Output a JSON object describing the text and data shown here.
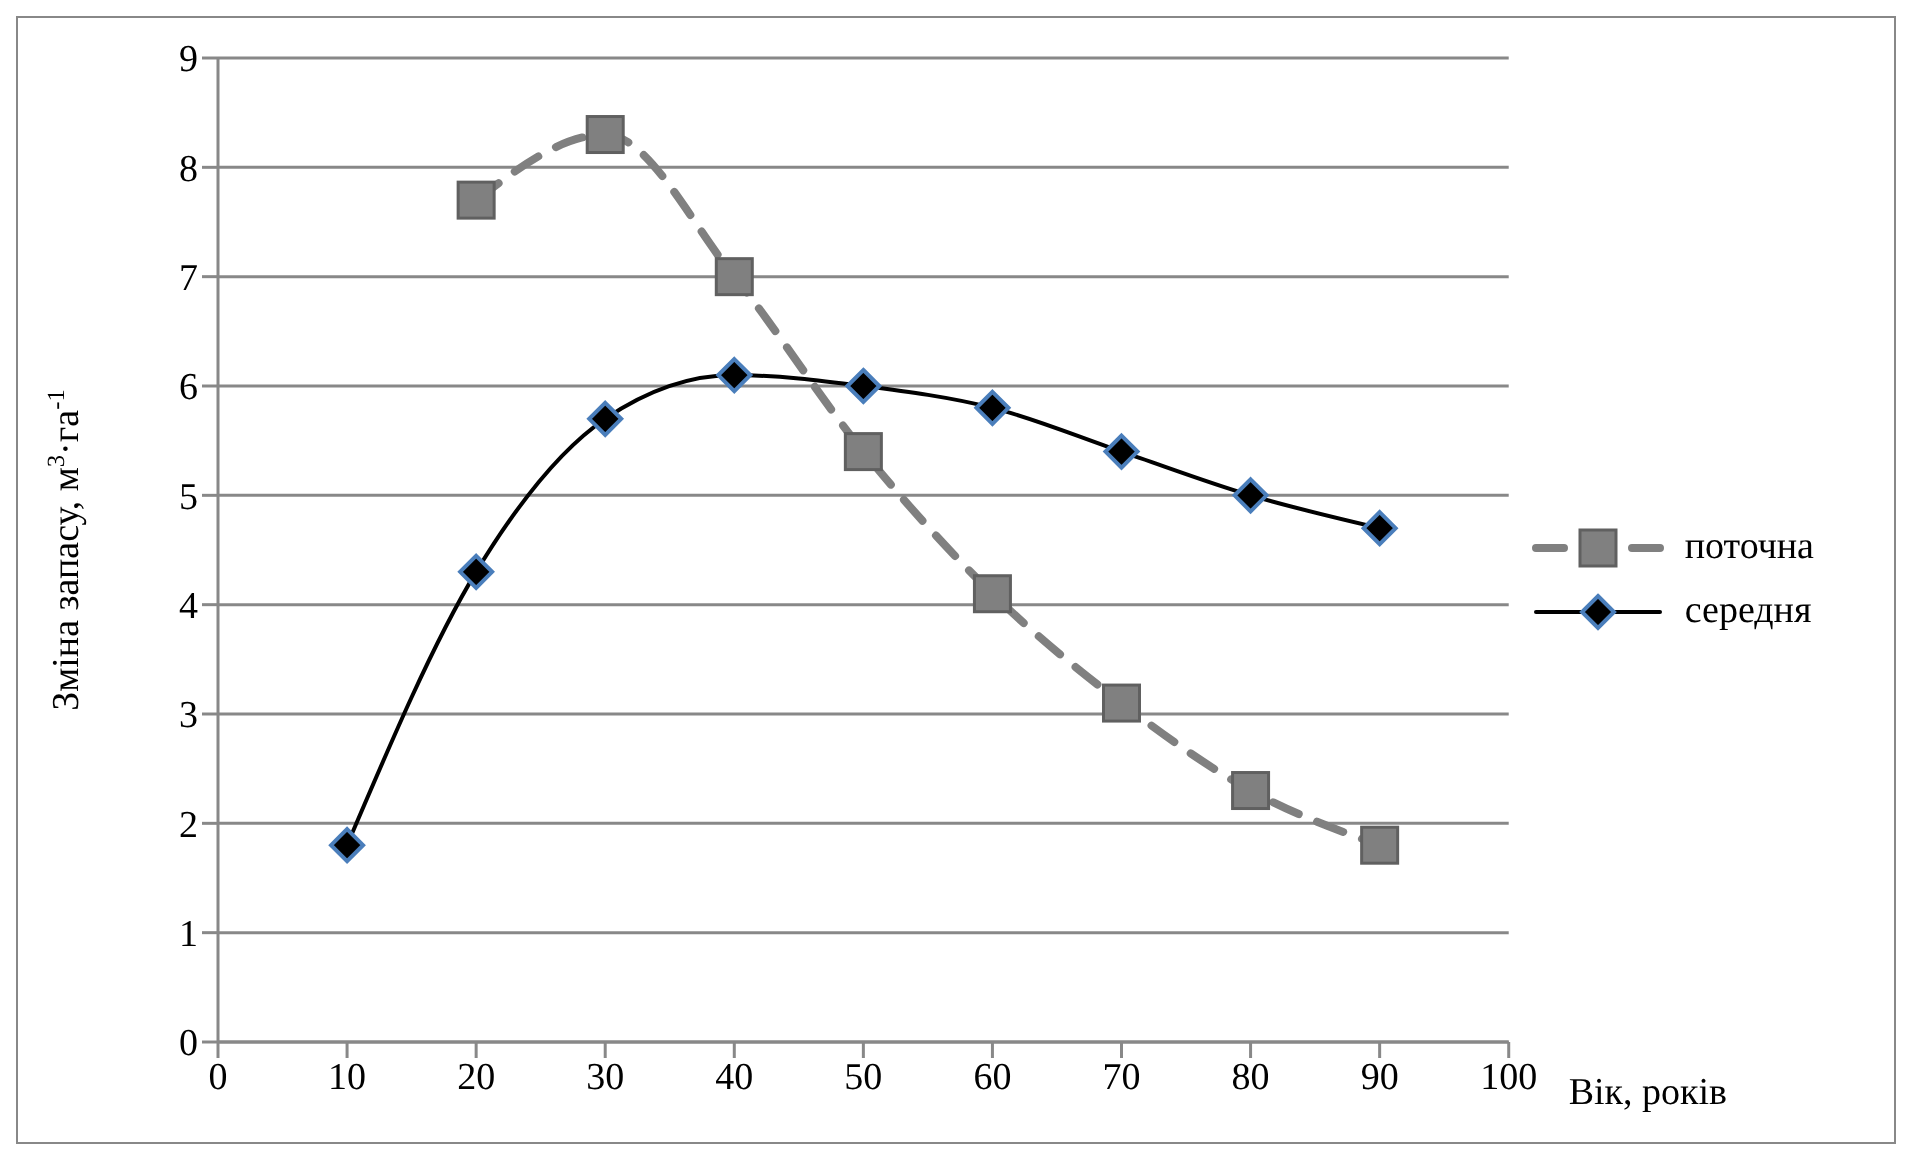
{
  "chart_data": {
    "type": "line",
    "xlabel": "Вік, років",
    "ylabel": "Зміна запасу, м$^{3}$·га$^{-1}$",
    "xlim": [
      0,
      100
    ],
    "xticks": [
      0,
      10,
      20,
      30,
      40,
      50,
      60,
      70,
      80,
      90,
      100
    ],
    "ylim": [
      0,
      9
    ],
    "yticks": [
      0,
      1,
      2,
      3,
      4,
      5,
      6,
      7,
      8,
      9
    ],
    "grid": "y",
    "legend": "right",
    "series": [
      {
        "name": "поточна",
        "color": "#808080",
        "marker": "square",
        "line_style": "dashed",
        "x": [
          20,
          30,
          40,
          50,
          60,
          70,
          80,
          90
        ],
        "values": [
          7.7,
          8.3,
          7.0,
          5.4,
          4.1,
          3.1,
          2.3,
          1.8
        ]
      },
      {
        "name": "середня",
        "color": "#000000",
        "marker": "diamond",
        "line_style": "solid",
        "x": [
          10,
          20,
          30,
          40,
          50,
          60,
          70,
          80,
          90
        ],
        "values": [
          1.8,
          4.3,
          5.7,
          6.1,
          6.0,
          5.8,
          5.4,
          5.0,
          4.7
        ]
      }
    ]
  }
}
